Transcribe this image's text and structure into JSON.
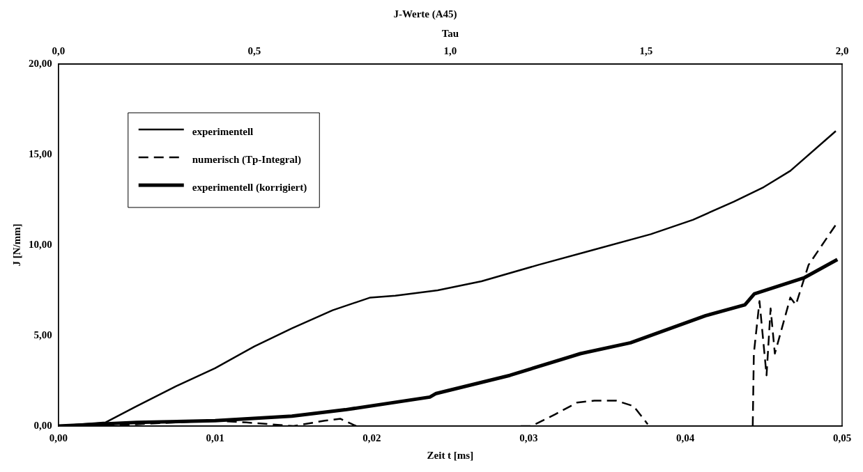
{
  "chart_data": {
    "type": "line",
    "title": "J-Werte (A45)",
    "x2label": "Tau",
    "xlabel": "Zeit t [ms]",
    "ylabel": "J [N/mm]",
    "xlim": [
      0,
      0.05
    ],
    "xticks": [
      {
        "value": 0,
        "label": "0,00"
      },
      {
        "value": 0.01,
        "label": "0,01"
      },
      {
        "value": 0.02,
        "label": "0,02"
      },
      {
        "value": 0.03,
        "label": "0,03"
      },
      {
        "value": 0.04,
        "label": "0,04"
      },
      {
        "value": 0.05,
        "label": "0,05"
      }
    ],
    "x2lim": [
      0,
      2
    ],
    "x2ticks": [
      {
        "value": 0,
        "label": "0,0"
      },
      {
        "value": 0.5,
        "label": "0,5"
      },
      {
        "value": 1,
        "label": "1,0"
      },
      {
        "value": 1.5,
        "label": "1,5"
      },
      {
        "value": 2,
        "label": "2,0"
      }
    ],
    "ylim": [
      0,
      20
    ],
    "yticks": [
      {
        "value": 0,
        "label": "0,00"
      },
      {
        "value": 5,
        "label": "5,00"
      },
      {
        "value": 10,
        "label": "10,00"
      },
      {
        "value": 15,
        "label": "15,00"
      },
      {
        "value": 20,
        "label": "20,00"
      }
    ],
    "grid": false,
    "legend": "top left",
    "marker": "none",
    "series": [
      {
        "name": "experimentell",
        "color": "#000000",
        "line_style": "solid",
        "x": [
          0,
          0.003,
          0.005,
          0.0075,
          0.01,
          0.0125,
          0.0149,
          0.0175,
          0.0199,
          0.0215,
          0.0242,
          0.027,
          0.0306,
          0.034,
          0.0378,
          0.0405,
          0.0431,
          0.045,
          0.0467,
          0.0496
        ],
        "values": [
          0,
          0.2,
          1.1,
          2.2,
          3.2,
          4.4,
          5.4,
          6.4,
          7.1,
          7.2,
          7.5,
          8.0,
          8.9,
          9.7,
          10.6,
          11.4,
          12.4,
          13.2,
          14.1,
          16.3
        ]
      },
      {
        "name": "numerisch (Tp-Integral)",
        "color": "#000000",
        "line_style": "dashed",
        "x": [
          0,
          0.005,
          0.01,
          0.012,
          0.015,
          0.017,
          0.018,
          0.019,
          0.025,
          0.0295,
          0.0302,
          0.0317,
          0.0331,
          0.0342,
          0.0356,
          0.0367,
          0.0376,
          0.04,
          0.0443,
          0.04437,
          0.04473,
          0.04518,
          0.04544,
          0.04571,
          0.0467,
          0.04705,
          0.04786,
          0.04974
        ],
        "values": [
          0,
          0.1,
          0.3,
          0.2,
          0,
          0.3,
          0.4,
          0,
          null,
          0,
          0,
          0.65,
          1.3,
          1.4,
          1.4,
          1.1,
          0.1,
          null,
          0,
          4.0,
          6.9,
          2.8,
          6.5,
          4.0,
          7.1,
          6.7,
          8.9,
          11.3
        ]
      },
      {
        "name": "experimentell (korrigiert)",
        "color": "#000000",
        "line_style": "solid",
        "x": [
          0,
          0.005,
          0.01,
          0.0149,
          0.0183,
          0.0237,
          0.0241,
          0.0288,
          0.0333,
          0.0365,
          0.0413,
          0.0438,
          0.0444,
          0.0476,
          0.0497
        ],
        "values": [
          0,
          0.2,
          0.3,
          0.55,
          0.9,
          1.6,
          1.8,
          2.8,
          4.0,
          4.6,
          6.1,
          6.7,
          7.3,
          8.2,
          9.2
        ]
      }
    ]
  }
}
